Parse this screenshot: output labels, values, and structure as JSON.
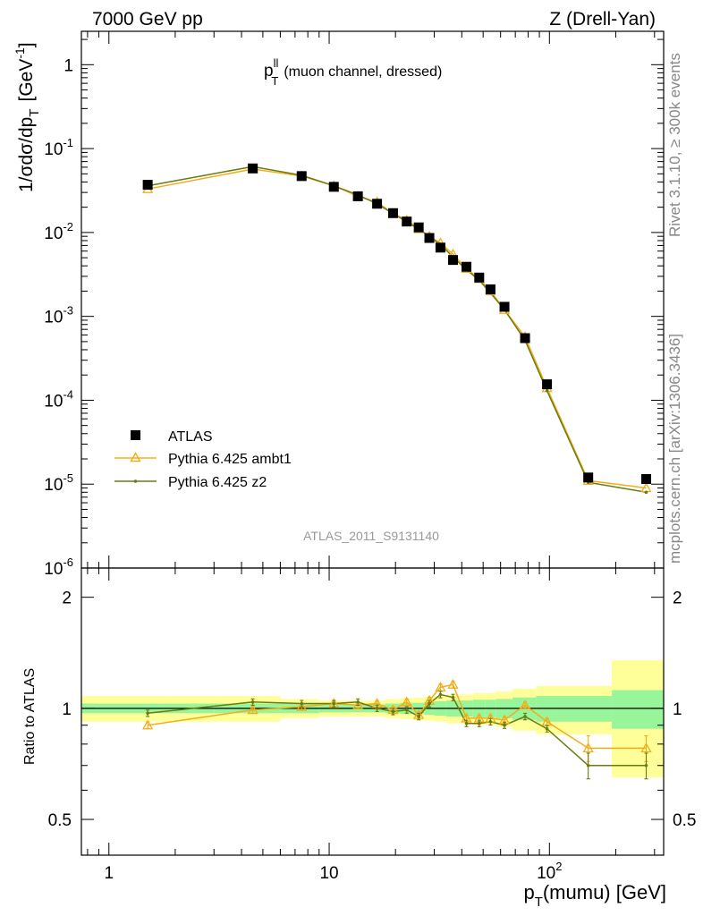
{
  "header": {
    "left": "7000 GeV pp",
    "right": "Z (Drell-Yan)"
  },
  "side_text": {
    "rivet": "Rivet 3.1.10, ≥ 300k events",
    "mcplots": "mcplots.cern.ch [arXiv:1306.3436]"
  },
  "main_title": {
    "p": "p",
    "sup": "ll",
    "sub": "T",
    "rest": "(muon channel, dressed)"
  },
  "analysis_id": "ATLAS_2011_S9131140",
  "ylabel": {
    "main": "1/σdσ/dp",
    "sub": "T",
    "unit_open": "[GeV",
    "unit_sup": "-1",
    "unit_close": "]"
  },
  "ratio_ylabel": "Ratio to ATLAS",
  "xlabel": {
    "p": "p",
    "sub": "T",
    "rest": "(mumu) [GeV]"
  },
  "legend": [
    {
      "label": "ATLAS",
      "color": "#000000"
    },
    {
      "label": "Pythia 6.425 ambt1",
      "color": "#f2ad1a"
    },
    {
      "label": "Pythia 6.425 z2",
      "color": "#6b7a12"
    }
  ],
  "colors": {
    "data": "#000000",
    "ambt1": "#f2ad1a",
    "z2": "#6b7a12",
    "band_inner": "#99f599",
    "band_outer": "#ffff99"
  },
  "chart_data": [
    {
      "type": "scatter",
      "xscale": "log",
      "yscale": "log",
      "xlim": [
        0.75,
        330
      ],
      "ylim": [
        1e-06,
        2.5
      ],
      "x_ticks": [
        "1",
        "10",
        "10^2"
      ],
      "y_ticks": [
        "10^-6",
        "10^-5",
        "10^-4",
        "10^-3",
        "10^-2",
        "10^-1",
        "1"
      ],
      "legend_position": "lower-left",
      "series": [
        {
          "name": "ATLAS",
          "x": [
            1.5,
            4.5,
            7.5,
            10.5,
            13.5,
            16.5,
            19.5,
            22.5,
            25.5,
            28.5,
            32,
            36.5,
            42,
            48,
            54,
            62.5,
            77.5,
            97.5,
            150,
            275
          ],
          "y": [
            0.037,
            0.058,
            0.047,
            0.035,
            0.027,
            0.022,
            0.017,
            0.0135,
            0.0115,
            0.0086,
            0.0066,
            0.0047,
            0.0039,
            0.0029,
            0.0021,
            0.0013,
            0.00055,
            0.000155,
            1.2e-05,
            1.15e-05
          ]
        },
        {
          "name": "Pythia 6.425 ambt1",
          "x": [
            1.5,
            4.5,
            7.5,
            10.5,
            13.5,
            16.5,
            19.5,
            22.5,
            25.5,
            28.5,
            32,
            36.5,
            42,
            48,
            54,
            62.5,
            77.5,
            97.5,
            150,
            275
          ],
          "y": [
            0.033,
            0.057,
            0.047,
            0.036,
            0.027,
            0.023,
            0.0168,
            0.014,
            0.011,
            0.009,
            0.0075,
            0.0055,
            0.0037,
            0.0028,
            0.002,
            0.0012,
            0.00057,
            0.00014,
            1.1e-05,
            9e-06
          ]
        },
        {
          "name": "Pythia 6.425 z2",
          "x": [
            1.5,
            4.5,
            7.5,
            10.5,
            13.5,
            16.5,
            19.5,
            22.5,
            25.5,
            28.5,
            32,
            36.5,
            42,
            48,
            54,
            62.5,
            77.5,
            97.5,
            150,
            275
          ],
          "y": [
            0.036,
            0.061,
            0.048,
            0.036,
            0.028,
            0.022,
            0.0168,
            0.0134,
            0.011,
            0.0089,
            0.0072,
            0.0051,
            0.0036,
            0.0027,
            0.0019,
            0.0012,
            0.00052,
            0.00013,
            1.05e-05,
            8e-06
          ]
        }
      ]
    },
    {
      "type": "line",
      "xscale": "log",
      "xlim": [
        0.75,
        330
      ],
      "ylim": [
        0.4,
        2.4
      ],
      "y_ticks": [
        "0.5",
        "1",
        "2"
      ],
      "reference": 1,
      "bands": {
        "bin_edges": [
          0.75,
          3,
          6,
          9,
          12,
          15,
          18,
          21,
          24,
          27,
          30,
          34,
          39,
          45,
          51,
          57,
          68,
          87,
          108,
          192,
          330
        ],
        "inner_halfwidth": [
          0.03,
          0.03,
          0.03,
          0.025,
          0.025,
          0.025,
          0.03,
          0.035,
          0.035,
          0.04,
          0.045,
          0.05,
          0.05,
          0.055,
          0.055,
          0.06,
          0.07,
          0.08,
          0.08,
          0.12
        ],
        "outer_halfwidth": [
          0.08,
          0.08,
          0.06,
          0.05,
          0.05,
          0.05,
          0.06,
          0.065,
          0.07,
          0.075,
          0.08,
          0.09,
          0.09,
          0.1,
          0.1,
          0.11,
          0.13,
          0.15,
          0.15,
          0.35
        ]
      },
      "series": [
        {
          "name": "Pythia 6.425 ambt1",
          "x": [
            1.5,
            4.5,
            7.5,
            10.5,
            13.5,
            16.5,
            19.5,
            22.5,
            25.5,
            28.5,
            32,
            36.5,
            42,
            48,
            54,
            62.5,
            77.5,
            97.5,
            150,
            275
          ],
          "y": [
            0.9,
            0.99,
            1.01,
            1.03,
            1.02,
            1.03,
            0.99,
            1.04,
            0.96,
            1.05,
            1.14,
            1.16,
            0.94,
            0.94,
            0.94,
            0.93,
            1.02,
            0.92,
            0.78,
            0.78
          ]
        },
        {
          "name": "Pythia 6.425 z2",
          "x": [
            1.5,
            4.5,
            7.5,
            10.5,
            13.5,
            16.5,
            19.5,
            22.5,
            25.5,
            28.5,
            32,
            36.5,
            42,
            48,
            54,
            62.5,
            77.5,
            97.5,
            150,
            275
          ],
          "y": [
            0.97,
            1.04,
            1.03,
            1.03,
            1.04,
            1.0,
            0.98,
            0.99,
            0.95,
            1.03,
            1.09,
            1.07,
            0.91,
            0.91,
            0.92,
            0.9,
            0.95,
            0.88,
            0.7,
            0.7
          ]
        }
      ]
    }
  ]
}
